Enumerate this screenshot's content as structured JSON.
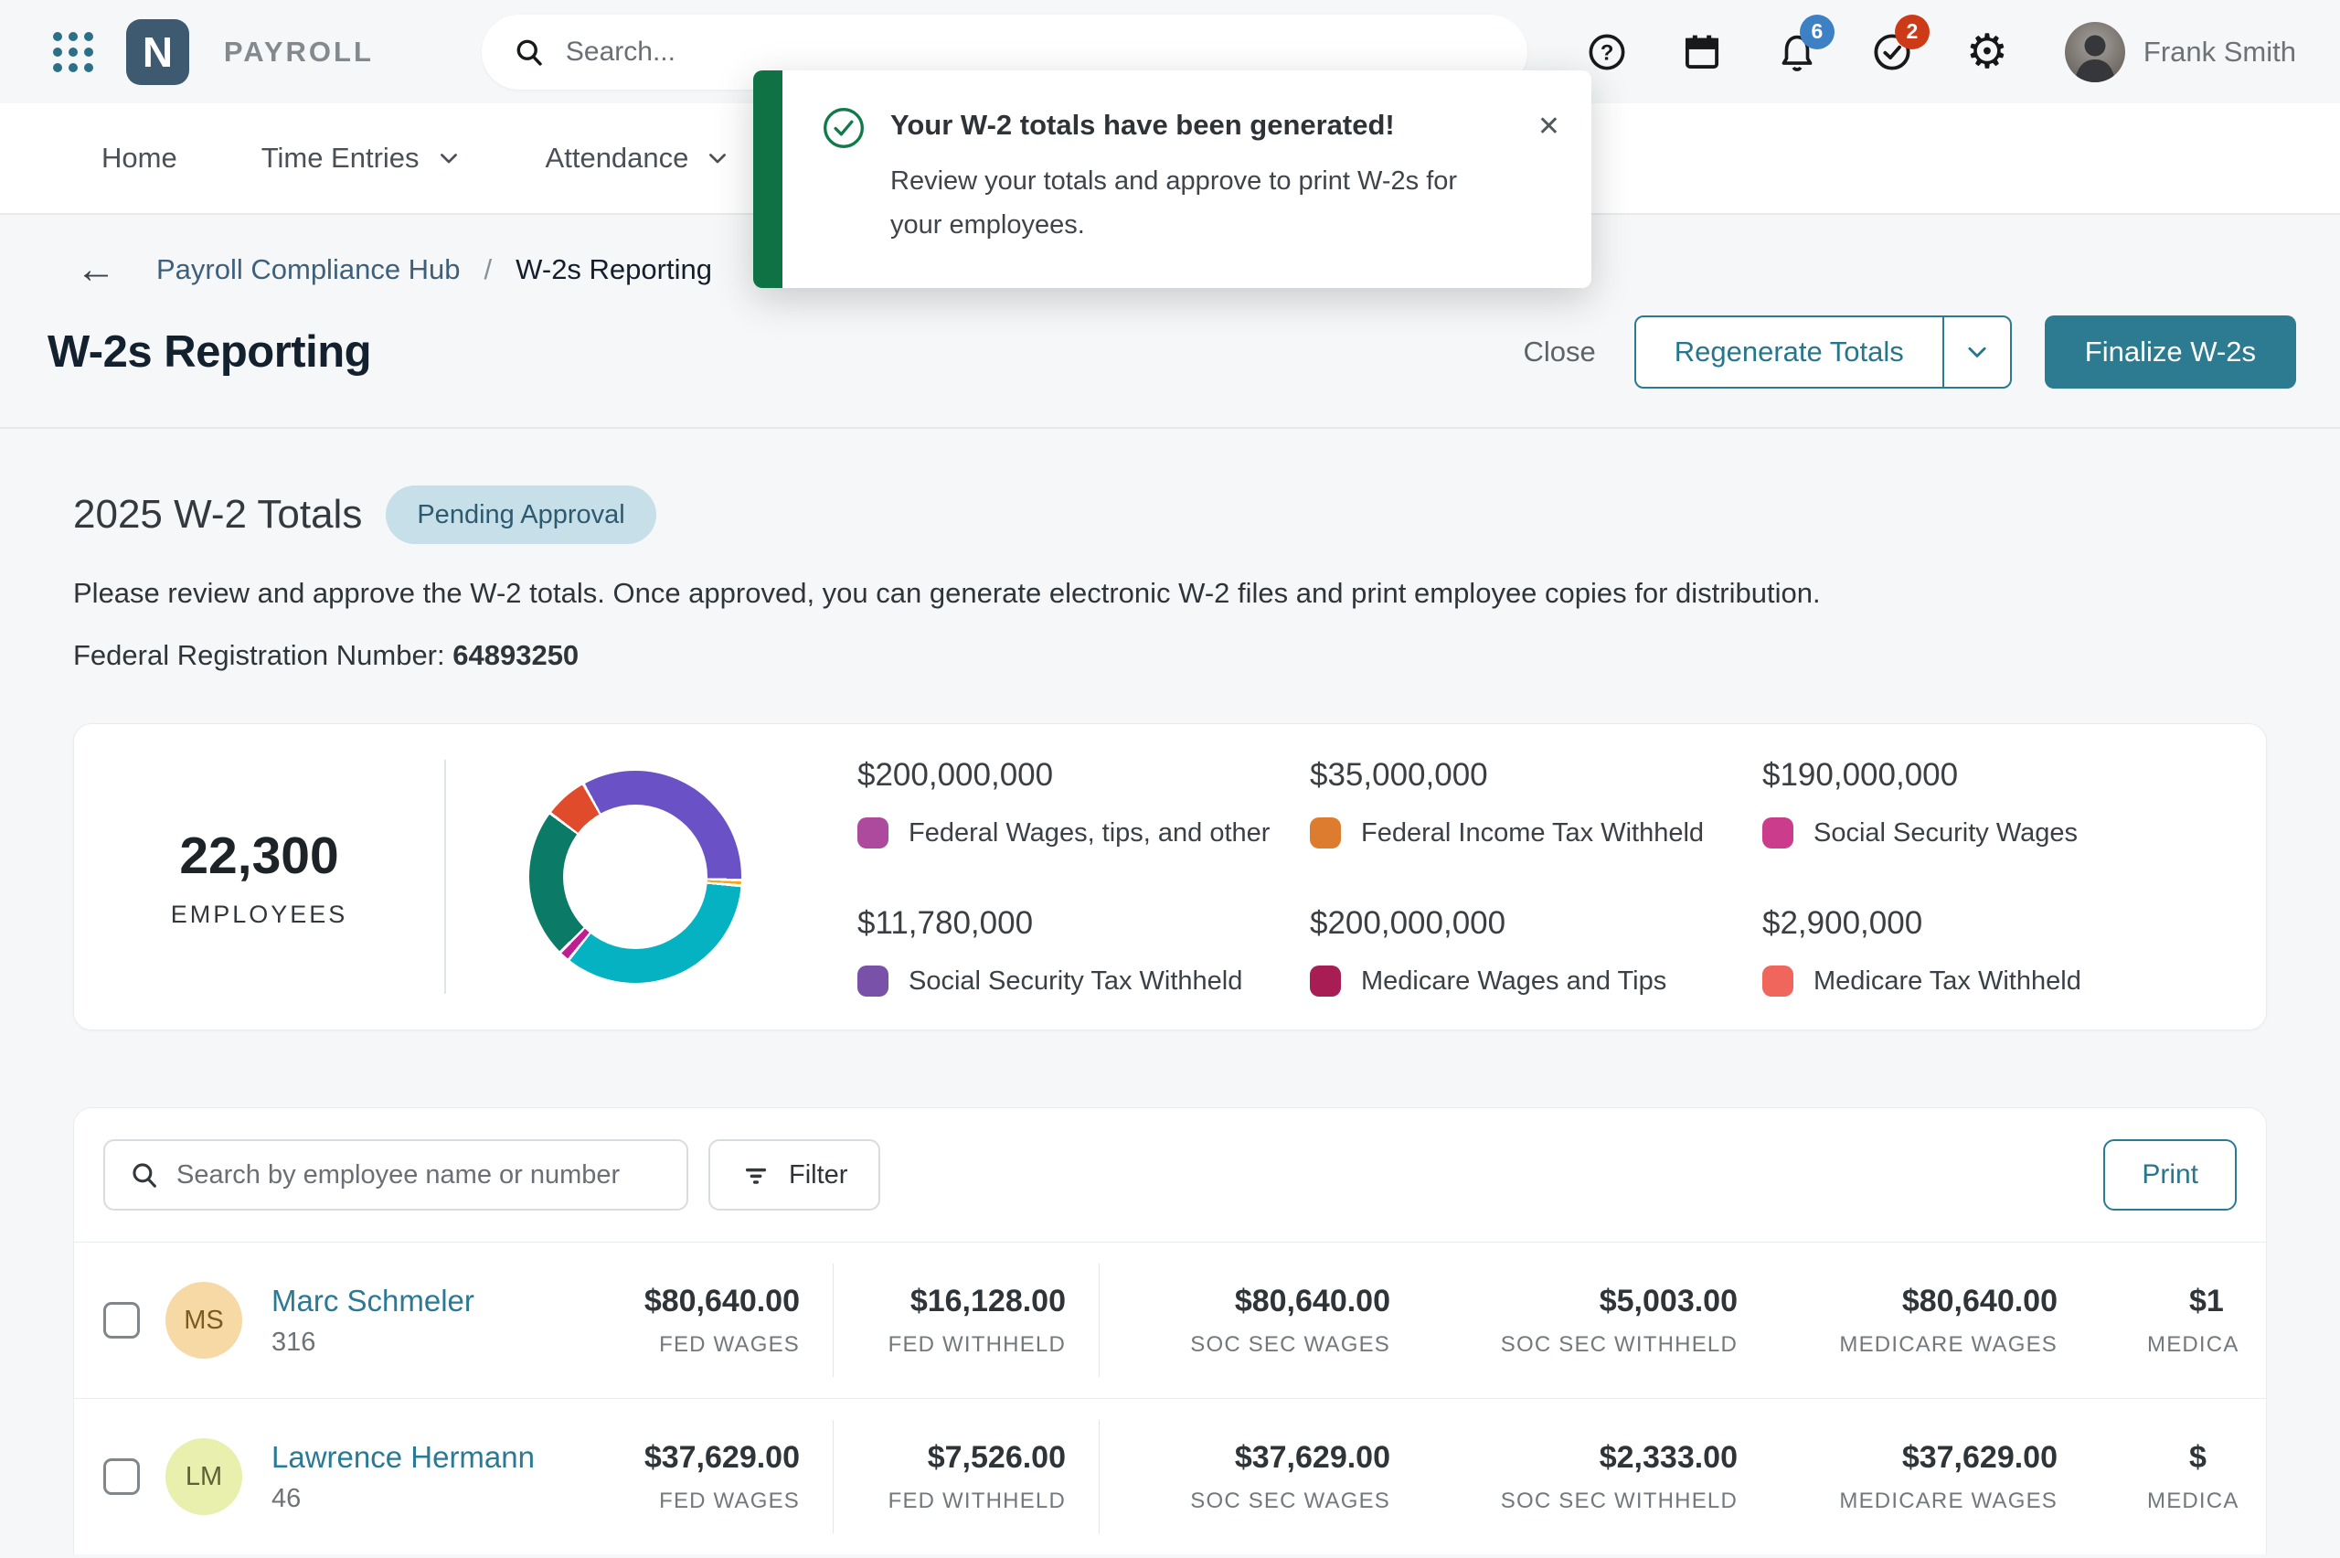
{
  "topbar": {
    "product": "PAYROLL",
    "search_placeholder": "Search...",
    "notification_count": "6",
    "task_count": "2",
    "user_name": "Frank Smith",
    "logo_letter": "N"
  },
  "nav": {
    "items": [
      {
        "label": "Home",
        "has_dropdown": false
      },
      {
        "label": "Time Entries",
        "has_dropdown": true
      },
      {
        "label": "Attendance",
        "has_dropdown": true
      }
    ]
  },
  "toast": {
    "title": "Your W-2 totals have been generated!",
    "body": "Review your totals and approve to print W-2s for your employees.",
    "close_glyph": "✕"
  },
  "breadcrumb": {
    "back_glyph": "←",
    "parent": "Payroll Compliance Hub",
    "separator": "/",
    "current": "W-2s Reporting"
  },
  "header": {
    "title": "W-2s Reporting",
    "close_label": "Close",
    "regenerate_label": "Regenerate Totals",
    "finalize_label": "Finalize W-2s"
  },
  "totals_section": {
    "heading": "2025 W-2 Totals",
    "status_badge": "Pending Approval",
    "description": "Please review and approve the W-2 totals. Once approved, you can generate electronic W-2 files and print employee copies for distribution.",
    "fed_reg_label": "Federal Registration Number:",
    "fed_reg_number": "64893250"
  },
  "chart_data": {
    "type": "pie",
    "title": "2025 W-2 Totals",
    "employees": {
      "count": "22,300",
      "label": "EMPLOYEES"
    },
    "legend": [
      {
        "value": "$200,000,000",
        "label": "Federal Wages, tips, and other",
        "color": "#ad4a9e"
      },
      {
        "value": "$35,000,000",
        "label": "Federal Income Tax Withheld",
        "color": "#dd7b2f"
      },
      {
        "value": "$190,000,000",
        "label": "Social Security Wages",
        "color": "#cb3d8c"
      },
      {
        "value": "$11,780,000",
        "label": "Social Security Tax Withheld",
        "color": "#7a51a8"
      },
      {
        "value": "$200,000,000",
        "label": "Medicare Wages and Tips",
        "color": "#a91d55"
      },
      {
        "value": "$2,900,000",
        "label": "Medicare Tax Withheld",
        "color": "#f0655c"
      }
    ],
    "donut_segments": [
      {
        "name": "purple",
        "color": "#6a52c6",
        "deg": 121
      },
      {
        "name": "yellow",
        "color": "#f0a81c",
        "deg": 3
      },
      {
        "name": "cyan",
        "color": "#05b2c1",
        "deg": 124
      },
      {
        "name": "magenta",
        "color": "#bf1d92",
        "deg": 6
      },
      {
        "name": "green",
        "color": "#0b7a66",
        "deg": 82
      },
      {
        "name": "orange-red",
        "color": "#e04b2b",
        "deg": 24
      }
    ],
    "start_angle_deg": -30,
    "legend_position": "right",
    "hole_ratio": 0.68
  },
  "employee_table": {
    "search_placeholder": "Search by employee name or number",
    "filter_label": "Filter",
    "print_label": "Print",
    "rows": [
      {
        "initials": "MS",
        "name": "Marc Schmeler",
        "number": "316",
        "avatar_bg": "#f7d9a6",
        "avatar_fg": "#7d5a1f",
        "stats": [
          {
            "value": "$80,640.00",
            "label": "FED WAGES"
          },
          {
            "value": "$16,128.00",
            "label": "FED WITHHELD"
          },
          {
            "value": "$80,640.00",
            "label": "SOC SEC WAGES"
          },
          {
            "value": "$5,003.00",
            "label": "SOC SEC WITHHELD"
          },
          {
            "value": "$80,640.00",
            "label": "MEDICARE WAGES"
          },
          {
            "value": "$1",
            "label": "MEDICA",
            "clipped": true
          }
        ]
      },
      {
        "initials": "LM",
        "name": "Lawrence Hermann",
        "number": "46",
        "avatar_bg": "#e9efad",
        "avatar_fg": "#5c6137",
        "stats": [
          {
            "value": "$37,629.00",
            "label": "FED WAGES"
          },
          {
            "value": "$7,526.00",
            "label": "FED WITHHELD"
          },
          {
            "value": "$37,629.00",
            "label": "SOC SEC WAGES"
          },
          {
            "value": "$2,333.00",
            "label": "SOC SEC WITHHELD"
          },
          {
            "value": "$37,629.00",
            "label": "MEDICARE WAGES"
          },
          {
            "value": "$",
            "label": "MEDICA",
            "clipped": true
          }
        ]
      }
    ]
  },
  "colors": {
    "accent_teal": "#2a7b91",
    "link_teal": "#2b7a95",
    "toast_green": "#0f7245",
    "badge_blue": "#3e80c4",
    "badge_red": "#cd3a18",
    "status_badge_bg": "#c6dfe9",
    "status_badge_text": "#2e5a70",
    "page_bg": "#f6f7f8"
  }
}
